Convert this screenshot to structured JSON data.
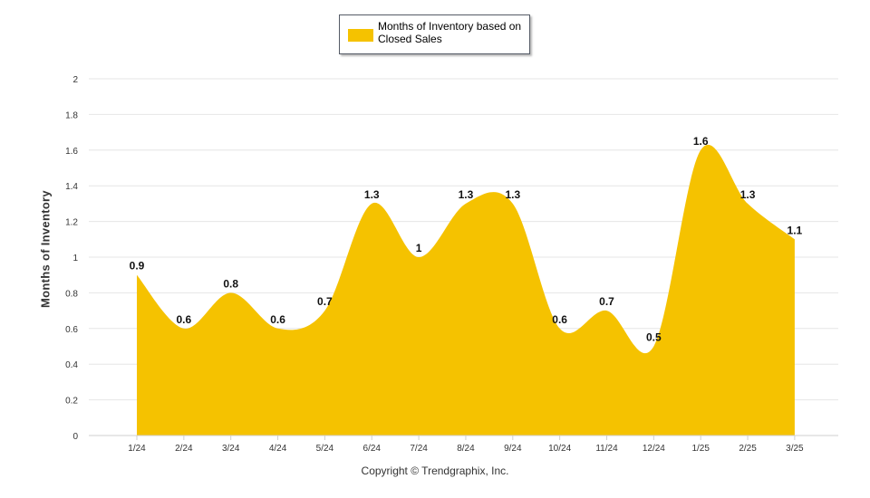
{
  "chart_data": {
    "type": "area",
    "categories": [
      "1/24",
      "2/24",
      "3/24",
      "4/24",
      "5/24",
      "6/24",
      "7/24",
      "8/24",
      "9/24",
      "10/24",
      "11/24",
      "12/24",
      "1/25",
      "2/25",
      "3/25"
    ],
    "series": [
      {
        "name": "Months of Inventory based on Closed Sales",
        "values": [
          0.9,
          0.6,
          0.8,
          0.6,
          0.7,
          1.3,
          1.0,
          1.3,
          1.3,
          0.6,
          0.7,
          0.5,
          1.6,
          1.3,
          1.1
        ],
        "labels": [
          "0.9",
          "0.6",
          "0.8",
          "0.6",
          "0.7",
          "1.3",
          "1",
          "1.3",
          "1.3",
          "0.6",
          "0.7",
          "0.5",
          "1.6",
          "1.3",
          "1.1"
        ],
        "color": "#f5c200"
      }
    ],
    "yticks": [
      "0",
      "0.2",
      "0.4",
      "0.6",
      "0.8",
      "1",
      "1.2",
      "1.4",
      "1.6",
      "1.8",
      "2"
    ],
    "ylim": [
      0,
      2
    ],
    "ylabel": "Months of Inventory",
    "xlabel": "",
    "grid": true,
    "legend_position": "top-center"
  },
  "legend": {
    "label": "Months of Inventory based on Closed Sales",
    "color": "#f5c200"
  },
  "footer": {
    "copyright": "Copyright © Trendgraphix, Inc."
  }
}
